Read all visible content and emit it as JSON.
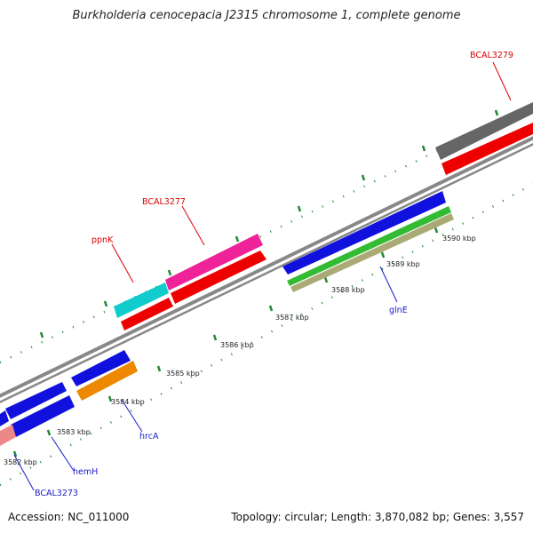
{
  "title": "Burkholderia cenocepacia J2315 chromosome 1, complete genome",
  "footer": {
    "accession": "Accession: NC_011000",
    "topology": "Topology: circular; Length: 3,870,082 bp; Genes: 3,557"
  },
  "scale_labels": [
    {
      "name": "scale-label-3582",
      "text": "3582 kbp"
    },
    {
      "name": "scale-label-3583",
      "text": "3583 kbp"
    },
    {
      "name": "scale-label-3584",
      "text": "3584 kbp"
    },
    {
      "name": "scale-label-3585",
      "text": "3585 kbp"
    },
    {
      "name": "scale-label-3586",
      "text": "3586 kbp"
    },
    {
      "name": "scale-label-3587",
      "text": "3587 kbp"
    },
    {
      "name": "scale-label-3588",
      "text": "3588 kbp"
    },
    {
      "name": "scale-label-3589",
      "text": "3589 kbp"
    },
    {
      "name": "scale-label-3590",
      "text": "3590 kbp"
    }
  ],
  "gene_labels": [
    {
      "name": "gene-label-bcal3279",
      "text": "BCAL3279",
      "color": "#dd0000"
    },
    {
      "name": "gene-label-bcal3277",
      "text": "BCAL3277",
      "color": "#dd0000"
    },
    {
      "name": "gene-label-ppnk",
      "text": "ppnK",
      "color": "#dd0000"
    },
    {
      "name": "gene-label-glne",
      "text": "glnE",
      "color": "#1a1acc"
    },
    {
      "name": "gene-label-hrca",
      "text": "hrcA",
      "color": "#1a1acc"
    },
    {
      "name": "gene-label-hemh",
      "text": "hemH",
      "color": "#1a1acc"
    },
    {
      "name": "gene-label-bcal3273",
      "text": "BCAL3273",
      "color": "#1a1acc"
    }
  ],
  "colors": {
    "forward_cds": "#ee0000",
    "reverse_cds": "#1111dd",
    "backbone": "#888888",
    "tick": "#228833"
  }
}
